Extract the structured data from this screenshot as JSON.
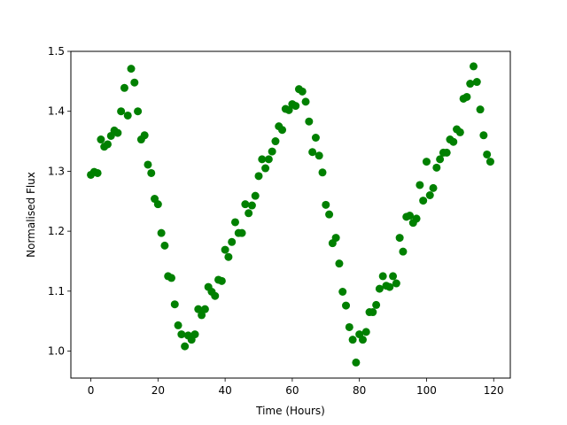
{
  "chart_data": {
    "type": "scatter",
    "title": "",
    "xlabel": "Time (Hours)",
    "ylabel": "Normalised Flux",
    "xlim": [
      -5.95,
      124.95
    ],
    "ylim": [
      0.955,
      1.5
    ],
    "xticks": [
      0,
      20,
      40,
      60,
      80,
      100,
      120
    ],
    "xtick_labels": [
      "0",
      "20",
      "40",
      "60",
      "80",
      "100",
      "120"
    ],
    "yticks": [
      1.0,
      1.1,
      1.2,
      1.3,
      1.4,
      1.5
    ],
    "ytick_labels": [
      "1.0",
      "1.1",
      "1.2",
      "1.3",
      "1.4",
      "1.5"
    ],
    "grid": false,
    "legend": "none",
    "marker_color": "#008000",
    "series": [
      {
        "x": [
          0,
          1,
          2,
          3,
          4,
          5,
          6,
          7,
          8,
          9,
          10,
          11,
          12,
          13,
          14,
          15,
          16,
          17,
          18,
          19,
          20,
          21,
          22,
          23,
          24,
          25,
          26,
          27,
          28,
          29,
          30,
          31,
          32,
          33,
          34,
          35,
          36,
          37,
          38,
          39,
          40,
          41,
          42,
          43,
          44,
          45,
          46,
          47,
          48,
          49,
          50,
          51,
          52,
          53,
          54,
          55,
          56,
          57,
          58,
          59,
          60,
          61,
          62,
          63,
          64,
          65,
          66,
          67,
          68,
          69,
          70,
          71,
          72,
          73,
          74,
          75,
          76,
          77,
          78,
          79,
          80,
          81,
          82,
          83,
          84,
          85,
          86,
          87,
          88,
          89,
          90,
          91,
          92,
          93,
          94,
          95,
          96,
          97,
          98,
          99,
          100,
          101,
          102,
          103,
          104,
          105,
          106,
          107,
          108,
          109,
          110,
          111,
          112,
          113,
          114,
          115,
          116,
          117,
          118,
          119
        ],
        "y": [
          1.294,
          1.299,
          1.297,
          1.353,
          1.341,
          1.345,
          1.359,
          1.368,
          1.364,
          1.4,
          1.439,
          1.393,
          1.471,
          1.448,
          1.4,
          1.353,
          1.36,
          1.311,
          1.297,
          1.254,
          1.245,
          1.197,
          1.176,
          1.125,
          1.122,
          1.078,
          1.043,
          1.028,
          1.008,
          1.026,
          1.019,
          1.028,
          1.07,
          1.06,
          1.07,
          1.107,
          1.099,
          1.092,
          1.119,
          1.117,
          1.169,
          1.157,
          1.182,
          1.215,
          1.197,
          1.197,
          1.245,
          1.23,
          1.243,
          1.259,
          1.292,
          1.32,
          1.305,
          1.32,
          1.333,
          1.35,
          1.375,
          1.369,
          1.404,
          1.402,
          1.412,
          1.409,
          1.437,
          1.433,
          1.416,
          1.383,
          1.332,
          1.356,
          1.326,
          1.298,
          1.244,
          1.228,
          1.18,
          1.189,
          1.146,
          1.099,
          1.076,
          1.04,
          1.019,
          0.981,
          1.028,
          1.019,
          1.032,
          1.065,
          1.065,
          1.077,
          1.104,
          1.125,
          1.109,
          1.107,
          1.125,
          1.113,
          1.189,
          1.166,
          1.224,
          1.226,
          1.214,
          1.221,
          1.277,
          1.251,
          1.316,
          1.26,
          1.272,
          1.306,
          1.32,
          1.331,
          1.331,
          1.353,
          1.349,
          1.37,
          1.365,
          1.421,
          1.424,
          1.446,
          1.475,
          1.449,
          1.403,
          1.36,
          1.328,
          1.316
        ]
      }
    ]
  }
}
